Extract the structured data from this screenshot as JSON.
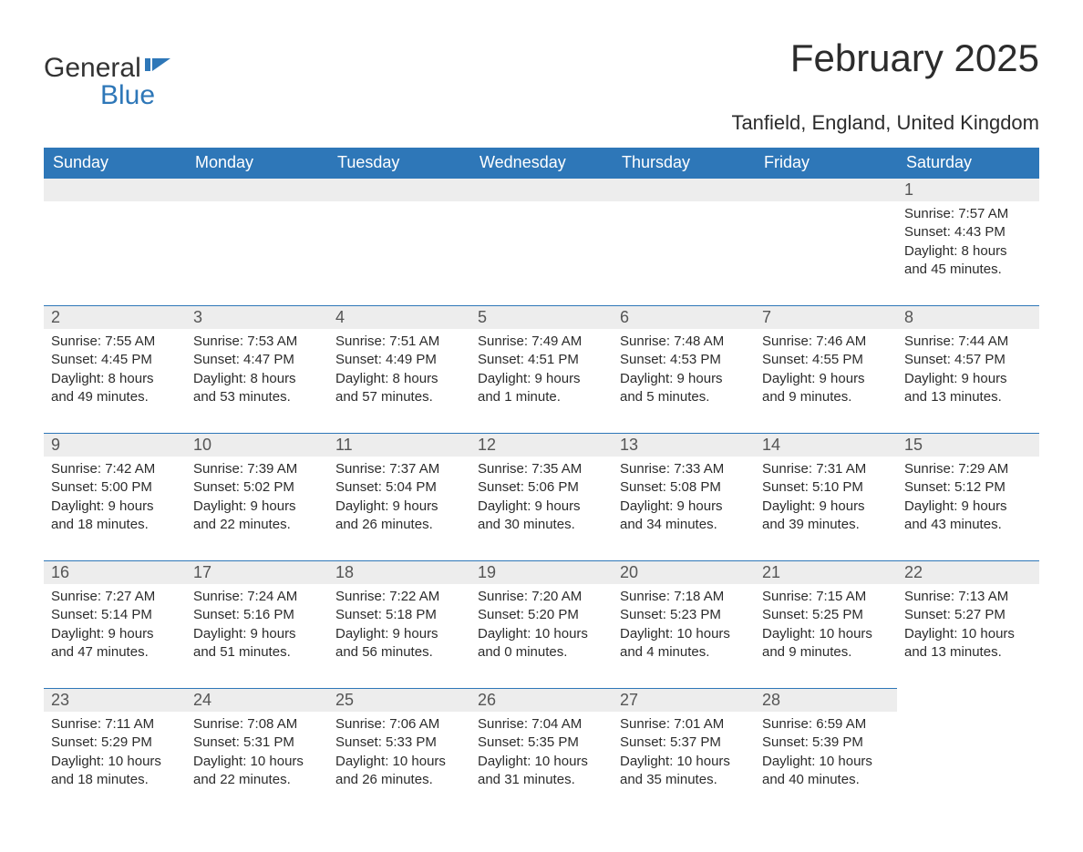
{
  "brand": {
    "part1": "General",
    "part2": "Blue"
  },
  "title": "February 2025",
  "subtitle": "Tanfield, England, United Kingdom",
  "colors": {
    "accent": "#2e77b8",
    "header_text": "#ffffff",
    "row_bg": "#ededed",
    "body_bg": "#ffffff",
    "text": "#2c2c2c"
  },
  "dayHeaders": [
    "Sunday",
    "Monday",
    "Tuesday",
    "Wednesday",
    "Thursday",
    "Friday",
    "Saturday"
  ],
  "weeks": [
    [
      null,
      null,
      null,
      null,
      null,
      null,
      {
        "n": "1",
        "sunrise": "7:57 AM",
        "sunset": "4:43 PM",
        "daylight": "8 hours and 45 minutes."
      }
    ],
    [
      {
        "n": "2",
        "sunrise": "7:55 AM",
        "sunset": "4:45 PM",
        "daylight": "8 hours and 49 minutes."
      },
      {
        "n": "3",
        "sunrise": "7:53 AM",
        "sunset": "4:47 PM",
        "daylight": "8 hours and 53 minutes."
      },
      {
        "n": "4",
        "sunrise": "7:51 AM",
        "sunset": "4:49 PM",
        "daylight": "8 hours and 57 minutes."
      },
      {
        "n": "5",
        "sunrise": "7:49 AM",
        "sunset": "4:51 PM",
        "daylight": "9 hours and 1 minute."
      },
      {
        "n": "6",
        "sunrise": "7:48 AM",
        "sunset": "4:53 PM",
        "daylight": "9 hours and 5 minutes."
      },
      {
        "n": "7",
        "sunrise": "7:46 AM",
        "sunset": "4:55 PM",
        "daylight": "9 hours and 9 minutes."
      },
      {
        "n": "8",
        "sunrise": "7:44 AM",
        "sunset": "4:57 PM",
        "daylight": "9 hours and 13 minutes."
      }
    ],
    [
      {
        "n": "9",
        "sunrise": "7:42 AM",
        "sunset": "5:00 PM",
        "daylight": "9 hours and 18 minutes."
      },
      {
        "n": "10",
        "sunrise": "7:39 AM",
        "sunset": "5:02 PM",
        "daylight": "9 hours and 22 minutes."
      },
      {
        "n": "11",
        "sunrise": "7:37 AM",
        "sunset": "5:04 PM",
        "daylight": "9 hours and 26 minutes."
      },
      {
        "n": "12",
        "sunrise": "7:35 AM",
        "sunset": "5:06 PM",
        "daylight": "9 hours and 30 minutes."
      },
      {
        "n": "13",
        "sunrise": "7:33 AM",
        "sunset": "5:08 PM",
        "daylight": "9 hours and 34 minutes."
      },
      {
        "n": "14",
        "sunrise": "7:31 AM",
        "sunset": "5:10 PM",
        "daylight": "9 hours and 39 minutes."
      },
      {
        "n": "15",
        "sunrise": "7:29 AM",
        "sunset": "5:12 PM",
        "daylight": "9 hours and 43 minutes."
      }
    ],
    [
      {
        "n": "16",
        "sunrise": "7:27 AM",
        "sunset": "5:14 PM",
        "daylight": "9 hours and 47 minutes."
      },
      {
        "n": "17",
        "sunrise": "7:24 AM",
        "sunset": "5:16 PM",
        "daylight": "9 hours and 51 minutes."
      },
      {
        "n": "18",
        "sunrise": "7:22 AM",
        "sunset": "5:18 PM",
        "daylight": "9 hours and 56 minutes."
      },
      {
        "n": "19",
        "sunrise": "7:20 AM",
        "sunset": "5:20 PM",
        "daylight": "10 hours and 0 minutes."
      },
      {
        "n": "20",
        "sunrise": "7:18 AM",
        "sunset": "5:23 PM",
        "daylight": "10 hours and 4 minutes."
      },
      {
        "n": "21",
        "sunrise": "7:15 AM",
        "sunset": "5:25 PM",
        "daylight": "10 hours and 9 minutes."
      },
      {
        "n": "22",
        "sunrise": "7:13 AM",
        "sunset": "5:27 PM",
        "daylight": "10 hours and 13 minutes."
      }
    ],
    [
      {
        "n": "23",
        "sunrise": "7:11 AM",
        "sunset": "5:29 PM",
        "daylight": "10 hours and 18 minutes."
      },
      {
        "n": "24",
        "sunrise": "7:08 AM",
        "sunset": "5:31 PM",
        "daylight": "10 hours and 22 minutes."
      },
      {
        "n": "25",
        "sunrise": "7:06 AM",
        "sunset": "5:33 PM",
        "daylight": "10 hours and 26 minutes."
      },
      {
        "n": "26",
        "sunrise": "7:04 AM",
        "sunset": "5:35 PM",
        "daylight": "10 hours and 31 minutes."
      },
      {
        "n": "27",
        "sunrise": "7:01 AM",
        "sunset": "5:37 PM",
        "daylight": "10 hours and 35 minutes."
      },
      {
        "n": "28",
        "sunrise": "6:59 AM",
        "sunset": "5:39 PM",
        "daylight": "10 hours and 40 minutes."
      },
      null
    ]
  ],
  "labels": {
    "sunrise": "Sunrise: ",
    "sunset": "Sunset: ",
    "daylight": "Daylight: "
  }
}
